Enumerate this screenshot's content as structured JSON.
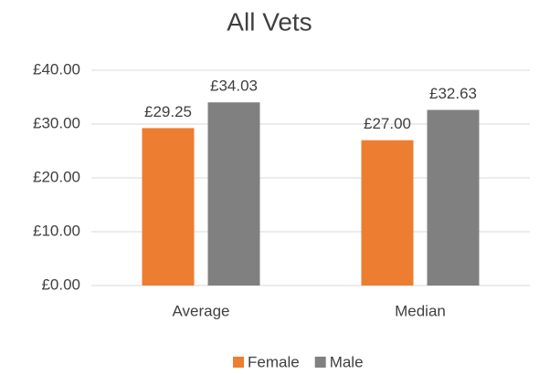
{
  "chart_data": {
    "type": "bar",
    "title": "All Vets",
    "categories": [
      "Average",
      "Median"
    ],
    "series": [
      {
        "name": "Female",
        "color": "#ED7D31",
        "values": [
          29.25,
          27.0
        ],
        "value_labels": [
          "£29.25",
          "£27.00"
        ]
      },
      {
        "name": "Male",
        "color": "#808080",
        "values": [
          34.03,
          32.63
        ],
        "value_labels": [
          "£34.03",
          "£32.63"
        ]
      }
    ],
    "ylim": [
      0,
      40
    ],
    "yticks": [
      {
        "value": 0,
        "label": "£0.00"
      },
      {
        "value": 10,
        "label": "£10.00"
      },
      {
        "value": 20,
        "label": "£20.00"
      },
      {
        "value": 30,
        "label": "£30.00"
      },
      {
        "value": 40,
        "label": "£40.00"
      }
    ],
    "grid": true,
    "legend": "bottom"
  }
}
